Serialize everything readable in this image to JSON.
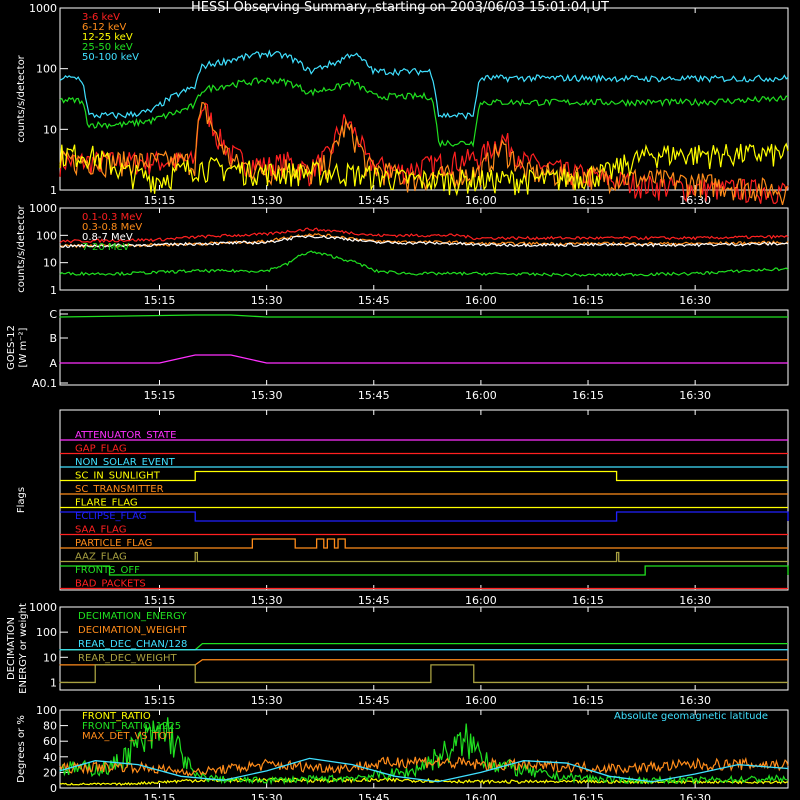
{
  "title": "HESSI Observing Summary, starting on 2003/06/03 15:01:04 UT",
  "x_ticks": [
    "15:15",
    "15:30",
    "15:45",
    "16:00",
    "16:15",
    "16:30"
  ],
  "colors": {
    "red": "#ff2020",
    "orange": "#ff8c1a",
    "yellow": "#ffff00",
    "green": "#20e020",
    "cyan": "#40e0ff",
    "magenta": "#ff30ff",
    "blue": "#2020ff",
    "olive": "#a8a040",
    "white": "#ffffff"
  },
  "chart_data": [
    {
      "id": "lo_energy",
      "type": "line",
      "ylabel": "counts/s/detector",
      "yscale": "log",
      "ylim": [
        1,
        1000
      ],
      "ytick_labels": [
        "1",
        "10",
        "100",
        "1000"
      ],
      "xlim": [
        "15:01:04",
        "16:43"
      ],
      "series": [
        {
          "name": "3-6 keV",
          "color": "#ff2020",
          "x": [
            "15:20",
            "15:21",
            "15:23",
            "15:25",
            "15:27",
            "15:30",
            "15:33",
            "15:36",
            "15:39",
            "15:41",
            "15:44",
            "15:48",
            "15:52",
            "15:56",
            "16:00",
            "16:03",
            "16:06",
            "16:12",
            "16:18",
            "16:24",
            "16:30",
            "16:43"
          ],
          "y": [
            3,
            25,
            8,
            4,
            3,
            2.5,
            3,
            2,
            4,
            14,
            3,
            2,
            2.5,
            3,
            3.5,
            7,
            3,
            2,
            1.5,
            1.2,
            1.1,
            1
          ]
        },
        {
          "name": "6-12 keV",
          "color": "#ff8c1a",
          "x": [
            "15:20",
            "15:21",
            "15:23",
            "15:25",
            "15:27",
            "15:30",
            "15:33",
            "15:36",
            "15:39",
            "15:41",
            "15:44",
            "15:50",
            "16:00",
            "16:03",
            "16:06",
            "16:43"
          ],
          "y": [
            3,
            22,
            7,
            3,
            2.5,
            2,
            2.5,
            1.8,
            3,
            11,
            2.5,
            1.5,
            2,
            5,
            2,
            1
          ]
        },
        {
          "name": "12-25 keV",
          "color": "#ffff00",
          "x": [
            "15:01",
            "15:05",
            "15:10",
            "15:15",
            "15:20",
            "15:30",
            "15:40",
            "15:50",
            "16:00",
            "16:10",
            "16:18",
            "16:24",
            "16:30",
            "16:43"
          ],
          "y": [
            4,
            4,
            2,
            1.5,
            2.5,
            2,
            2,
            1.5,
            1.5,
            1.5,
            2,
            4,
            4,
            4
          ]
        },
        {
          "name": "25-50 keV",
          "color": "#20e020",
          "x": [
            "15:01",
            "15:04",
            "15:05",
            "15:10",
            "15:14",
            "15:18",
            "15:20",
            "15:21",
            "15:25",
            "15:30",
            "15:33",
            "15:36",
            "15:40",
            "15:42",
            "15:45",
            "15:53",
            "15:54",
            "15:59",
            "16:00",
            "16:15",
            "16:30",
            "16:43"
          ],
          "y": [
            30,
            30,
            12,
            12,
            14,
            20,
            25,
            45,
            55,
            65,
            60,
            40,
            50,
            60,
            35,
            35,
            6,
            6,
            28,
            28,
            28,
            32
          ]
        },
        {
          "name": "50-100 keV",
          "color": "#40e0ff",
          "x": [
            "15:01",
            "15:04",
            "15:05",
            "15:10",
            "15:14",
            "15:18",
            "15:20",
            "15:21",
            "15:25",
            "15:30",
            "15:33",
            "15:36",
            "15:40",
            "15:42",
            "15:45",
            "15:53",
            "15:54",
            "15:59",
            "16:00",
            "16:15",
            "16:30",
            "16:43"
          ],
          "y": [
            70,
            70,
            17,
            17,
            20,
            40,
            50,
            110,
            140,
            180,
            160,
            90,
            130,
            180,
            90,
            90,
            17,
            17,
            70,
            70,
            68,
            70
          ]
        }
      ]
    },
    {
      "id": "hi_energy",
      "type": "line",
      "ylabel": "counts/s/detector",
      "yscale": "log",
      "ylim": [
        1,
        1000
      ],
      "ytick_labels": [
        "1",
        "10",
        "100",
        "1000"
      ],
      "series": [
        {
          "name": "0.1-0.3 MeV",
          "color": "#ff2020",
          "x": [
            "15:01",
            "15:15",
            "15:21",
            "15:30",
            "15:36",
            "15:40",
            "15:45",
            "15:57",
            "15:59",
            "16:15",
            "16:30",
            "16:43"
          ],
          "y": [
            60,
            70,
            90,
            110,
            170,
            140,
            100,
            100,
            80,
            80,
            80,
            90
          ]
        },
        {
          "name": "0.3-0.8 MeV",
          "color": "#ff8c1a",
          "x": [
            "15:01",
            "15:15",
            "15:21",
            "15:30",
            "15:36",
            "15:40",
            "15:45",
            "15:57",
            "15:59",
            "16:15",
            "16:30",
            "16:43"
          ],
          "y": [
            40,
            45,
            50,
            60,
            110,
            90,
            60,
            55,
            50,
            50,
            50,
            55
          ]
        },
        {
          "name": "0.8-7 MeV",
          "color": "#ffffff",
          "x": [
            "15:01",
            "15:15",
            "15:21",
            "15:30",
            "15:36",
            "15:40",
            "15:45",
            "15:57",
            "15:59",
            "16:15",
            "16:30",
            "16:43"
          ],
          "y": [
            40,
            45,
            50,
            55,
            95,
            80,
            55,
            50,
            45,
            45,
            45,
            50
          ]
        },
        {
          "name": "7-20 MeV",
          "color": "#20e020",
          "x": [
            "15:01",
            "15:10",
            "15:20",
            "15:30",
            "15:33",
            "15:36",
            "15:40",
            "15:45",
            "15:50",
            "16:00",
            "16:15",
            "16:30",
            "16:43"
          ],
          "y": [
            4,
            4,
            5,
            5,
            9,
            25,
            15,
            5,
            4,
            4,
            3.5,
            4,
            6
          ]
        }
      ]
    },
    {
      "id": "goes",
      "type": "line",
      "ylabel": "GOES-12 [W m⁻²]",
      "ytick_labels": [
        "C",
        "B",
        "A",
        "A0.1"
      ],
      "series": [
        {
          "name": "",
          "color": "#20e020",
          "x": [
            "15:01",
            "15:20",
            "15:25",
            "15:30",
            "15:40",
            "15:50",
            "16:00",
            "16:15",
            "16:30",
            "16:43"
          ],
          "y": [
            "C",
            "C",
            "C",
            "C",
            "C",
            "C",
            "C",
            "C",
            "C",
            "C"
          ]
        },
        {
          "name": "",
          "color": "#ff30ff",
          "x": [
            "15:01",
            "15:15",
            "15:20",
            "15:25",
            "15:30",
            "15:40",
            "15:50",
            "16:00",
            "16:10",
            "16:15",
            "16:30",
            "16:43"
          ],
          "y": [
            "A",
            "A",
            "A",
            "A",
            "A",
            "A",
            "A",
            "A",
            "A",
            "A",
            "A",
            "A"
          ]
        }
      ]
    },
    {
      "id": "flags",
      "type": "line",
      "ylabel": "Flags",
      "series": [
        {
          "name": "ATTENUATOR_STATE",
          "color": "#ff30ff",
          "on": []
        },
        {
          "name": "GAP_FLAG",
          "color": "#ff2020",
          "on": []
        },
        {
          "name": "NON_SOLAR_EVENT",
          "color": "#40e0ff",
          "on": []
        },
        {
          "name": "SC_IN_SUNLIGHT",
          "color": "#ffff00",
          "on": [
            [
              "15:20",
              "16:19"
            ]
          ]
        },
        {
          "name": "SC_TRANSMITTER",
          "color": "#ff8c1a",
          "on": []
        },
        {
          "name": "FLARE_FLAG",
          "color": "#ffff00",
          "on": []
        },
        {
          "name": "ECLIPSE_FLAG",
          "color": "#2020ff",
          "on": [
            [
              "15:01",
              "15:20"
            ],
            [
              "16:19",
              "16:43"
            ]
          ]
        },
        {
          "name": "SAA_FLAG",
          "color": "#ff2020",
          "on": []
        },
        {
          "name": "PARTICLE_FLAG",
          "color": "#ff8c1a",
          "on": [
            [
              "15:28",
              "15:34"
            ],
            [
              "15:37",
              "15:38"
            ],
            [
              "15:38.5",
              "15:39.5"
            ],
            [
              "15:40",
              "15:41"
            ]
          ]
        },
        {
          "name": "AAZ_FLAG",
          "color": "#a8a040",
          "on": [
            [
              "15:20",
              "15:20.3"
            ],
            [
              "16:19",
              "16:19.3"
            ]
          ]
        },
        {
          "name": "FRONTS_OFF",
          "color": "#20e020",
          "on": [
            [
              "15:01",
              "15:08"
            ],
            [
              "16:23",
              "16:43"
            ]
          ]
        },
        {
          "name": "BAD_PACKETS",
          "color": "#ff2020",
          "on": []
        }
      ]
    },
    {
      "id": "decimation",
      "type": "line",
      "ylabel": "DECIMATION ENERGY or weight",
      "yscale": "log",
      "ylim": [
        0.5,
        1000
      ],
      "ytick_labels": [
        "1",
        "10",
        "100",
        "1000"
      ],
      "series": [
        {
          "name": "DECIMATION_ENERGY",
          "color": "#20e020",
          "x": [
            "15:01",
            "15:20",
            "15:21",
            "16:43"
          ],
          "y": [
            20,
            20,
            35,
            35
          ]
        },
        {
          "name": "DECIMATION_WEIGHT",
          "color": "#ff8c1a",
          "x": [
            "15:01",
            "15:20",
            "15:21",
            "16:43"
          ],
          "y": [
            5,
            5,
            8,
            8
          ]
        },
        {
          "name": "REAR_DEC_CHAN/128",
          "color": "#40e0ff",
          "x": [
            "15:01",
            "16:43"
          ],
          "y": [
            20,
            20
          ]
        },
        {
          "name": "REAR_DEC_WEIGHT",
          "color": "#a8a040",
          "x": [
            "15:01",
            "15:06",
            "15:06",
            "15:20",
            "15:20",
            "15:53",
            "15:53",
            "15:59",
            "15:59",
            "16:43"
          ],
          "y": [
            1,
            1,
            5,
            5,
            1,
            1,
            5,
            5,
            1,
            1
          ]
        }
      ]
    },
    {
      "id": "ratio",
      "type": "line",
      "ylabel": "Degrees or %",
      "ylim": [
        0,
        100
      ],
      "ytick_labels": [
        "0",
        "20",
        "40",
        "60",
        "80",
        "100"
      ],
      "annotation": "Absolute geomagnetic latitude",
      "series": [
        {
          "name": "FRONT_RATIO",
          "color": "#ffff00",
          "x": [
            "15:01",
            "15:10",
            "15:20",
            "15:30",
            "15:40",
            "15:50",
            "16:00",
            "16:10",
            "16:20",
            "16:30",
            "16:43"
          ],
          "y": [
            5,
            5,
            10,
            10,
            10,
            10,
            8,
            8,
            8,
            8,
            8
          ]
        },
        {
          "name": "FRONT_RATIO_1225",
          "color": "#20e020",
          "x": [
            "15:01",
            "15:08",
            "15:12",
            "15:16",
            "15:20",
            "15:25",
            "15:30",
            "15:40",
            "15:50",
            "15:55",
            "15:58",
            "16:02",
            "16:10",
            "16:20",
            "16:30",
            "16:43"
          ],
          "y": [
            25,
            25,
            55,
            75,
            15,
            10,
            10,
            12,
            20,
            45,
            60,
            30,
            15,
            10,
            10,
            12
          ]
        },
        {
          "name": "MAX_DET_VS_TOT",
          "color": "#ff8c1a",
          "x": [
            "15:01",
            "15:10",
            "15:20",
            "15:30",
            "15:40",
            "15:50",
            "16:00",
            "16:10",
            "16:20",
            "16:30",
            "16:43"
          ],
          "y": [
            25,
            28,
            20,
            30,
            25,
            35,
            30,
            28,
            25,
            30,
            30
          ]
        },
        {
          "name": "",
          "color": "#40e0ff",
          "x": [
            "15:01",
            "15:06",
            "15:12",
            "15:18",
            "15:24",
            "15:30",
            "15:36",
            "15:42",
            "15:48",
            "15:54",
            "16:00",
            "16:06",
            "16:12",
            "16:18",
            "16:24",
            "16:30",
            "16:36",
            "16:43"
          ],
          "y": [
            22,
            35,
            30,
            15,
            10,
            22,
            38,
            30,
            15,
            8,
            20,
            35,
            32,
            15,
            8,
            18,
            30,
            25
          ]
        }
      ]
    }
  ]
}
